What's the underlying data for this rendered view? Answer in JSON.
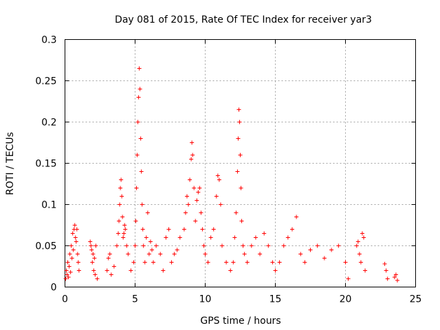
{
  "chart_data": {
    "type": "scatter",
    "title": "Day 081 of 2015, Rate Of TEC Index for receiver yar3",
    "xlabel": "GPS time / hours",
    "ylabel": "ROTI / TECUs",
    "xlim": [
      0,
      25
    ],
    "ylim": [
      0,
      0.3
    ],
    "xticks": [
      0,
      5,
      10,
      15,
      20,
      25
    ],
    "yticks": [
      0,
      0.05,
      0.1,
      0.15,
      0.2,
      0.25,
      0.3
    ],
    "xtick_labels": [
      "0",
      "5",
      "10",
      "15",
      "20",
      "25"
    ],
    "ytick_labels": [
      "0",
      "0.05",
      "0.1",
      "0.15",
      "0.2",
      "0.25",
      "0.3"
    ],
    "grid": true,
    "marker": "+",
    "color": "#ff0000",
    "series": [
      {
        "points": [
          [
            0.05,
            0.01
          ],
          [
            0.1,
            0.02
          ],
          [
            0.15,
            0.015
          ],
          [
            0.2,
            0.03
          ],
          [
            0.25,
            0.012
          ],
          [
            0.3,
            0.025
          ],
          [
            0.35,
            0.04
          ],
          [
            0.4,
            0.018
          ],
          [
            0.45,
            0.05
          ],
          [
            0.5,
            0.035
          ],
          [
            0.55,
            0.065
          ],
          [
            0.6,
            0.045
          ],
          [
            0.65,
            0.07
          ],
          [
            0.7,
            0.075
          ],
          [
            0.75,
            0.06
          ],
          [
            0.8,
            0.055
          ],
          [
            0.85,
            0.07
          ],
          [
            0.9,
            0.04
          ],
          [
            0.95,
            0.03
          ],
          [
            1.0,
            0.02
          ],
          [
            1.8,
            0.055
          ],
          [
            1.85,
            0.05
          ],
          [
            1.9,
            0.045
          ],
          [
            1.95,
            0.03
          ],
          [
            2.0,
            0.04
          ],
          [
            2.05,
            0.02
          ],
          [
            2.1,
            0.035
          ],
          [
            2.15,
            0.015
          ],
          [
            2.2,
            0.05
          ],
          [
            2.3,
            0.01
          ],
          [
            3.0,
            0.02
          ],
          [
            3.1,
            0.035
          ],
          [
            3.2,
            0.04
          ],
          [
            3.3,
            0.015
          ],
          [
            3.5,
            0.025
          ],
          [
            3.7,
            0.05
          ],
          [
            3.8,
            0.065
          ],
          [
            3.85,
            0.08
          ],
          [
            3.9,
            0.1
          ],
          [
            3.95,
            0.12
          ],
          [
            4.0,
            0.13
          ],
          [
            4.05,
            0.11
          ],
          [
            4.1,
            0.085
          ],
          [
            4.15,
            0.06
          ],
          [
            4.2,
            0.065
          ],
          [
            4.25,
            0.075
          ],
          [
            4.3,
            0.07
          ],
          [
            4.4,
            0.05
          ],
          [
            4.5,
            0.04
          ],
          [
            4.7,
            0.02
          ],
          [
            4.9,
            0.03
          ],
          [
            5.0,
            0.05
          ],
          [
            5.05,
            0.08
          ],
          [
            5.1,
            0.12
          ],
          [
            5.15,
            0.16
          ],
          [
            5.2,
            0.2
          ],
          [
            5.25,
            0.23
          ],
          [
            5.3,
            0.265
          ],
          [
            5.35,
            0.24
          ],
          [
            5.4,
            0.18
          ],
          [
            5.45,
            0.14
          ],
          [
            5.5,
            0.1
          ],
          [
            5.55,
            0.07
          ],
          [
            5.6,
            0.05
          ],
          [
            5.7,
            0.03
          ],
          [
            5.8,
            0.06
          ],
          [
            5.9,
            0.09
          ],
          [
            6.0,
            0.04
          ],
          [
            6.1,
            0.055
          ],
          [
            6.2,
            0.045
          ],
          [
            6.3,
            0.03
          ],
          [
            6.5,
            0.05
          ],
          [
            6.8,
            0.04
          ],
          [
            7.0,
            0.02
          ],
          [
            7.2,
            0.06
          ],
          [
            7.4,
            0.07
          ],
          [
            7.6,
            0.03
          ],
          [
            7.8,
            0.04
          ],
          [
            8.0,
            0.045
          ],
          [
            8.2,
            0.06
          ],
          [
            8.5,
            0.07
          ],
          [
            8.6,
            0.09
          ],
          [
            8.7,
            0.11
          ],
          [
            8.8,
            0.1
          ],
          [
            8.9,
            0.13
          ],
          [
            9.0,
            0.155
          ],
          [
            9.05,
            0.175
          ],
          [
            9.1,
            0.16
          ],
          [
            9.2,
            0.12
          ],
          [
            9.3,
            0.08
          ],
          [
            9.4,
            0.105
          ],
          [
            9.5,
            0.115
          ],
          [
            9.6,
            0.12
          ],
          [
            9.7,
            0.09
          ],
          [
            9.8,
            0.07
          ],
          [
            9.9,
            0.05
          ],
          [
            10.0,
            0.04
          ],
          [
            10.2,
            0.03
          ],
          [
            10.4,
            0.06
          ],
          [
            10.6,
            0.07
          ],
          [
            10.8,
            0.11
          ],
          [
            10.9,
            0.135
          ],
          [
            11.0,
            0.13
          ],
          [
            11.1,
            0.1
          ],
          [
            11.2,
            0.05
          ],
          [
            11.5,
            0.03
          ],
          [
            11.8,
            0.02
          ],
          [
            12.0,
            0.03
          ],
          [
            12.1,
            0.06
          ],
          [
            12.2,
            0.09
          ],
          [
            12.3,
            0.14
          ],
          [
            12.35,
            0.18
          ],
          [
            12.4,
            0.215
          ],
          [
            12.45,
            0.2
          ],
          [
            12.5,
            0.16
          ],
          [
            12.55,
            0.12
          ],
          [
            12.6,
            0.08
          ],
          [
            12.7,
            0.05
          ],
          [
            12.8,
            0.04
          ],
          [
            13.0,
            0.03
          ],
          [
            13.3,
            0.05
          ],
          [
            13.6,
            0.06
          ],
          [
            13.9,
            0.04
          ],
          [
            14.2,
            0.065
          ],
          [
            14.5,
            0.05
          ],
          [
            14.8,
            0.03
          ],
          [
            15.0,
            0.02
          ],
          [
            15.3,
            0.03
          ],
          [
            15.6,
            0.05
          ],
          [
            15.9,
            0.06
          ],
          [
            16.2,
            0.07
          ],
          [
            16.5,
            0.085
          ],
          [
            16.8,
            0.04
          ],
          [
            17.1,
            0.03
          ],
          [
            17.5,
            0.045
          ],
          [
            18.0,
            0.05
          ],
          [
            18.5,
            0.035
          ],
          [
            19.0,
            0.045
          ],
          [
            19.5,
            0.05
          ],
          [
            20.0,
            0.03
          ],
          [
            20.2,
            0.01
          ],
          [
            20.8,
            0.05
          ],
          [
            20.9,
            0.055
          ],
          [
            21.0,
            0.04
          ],
          [
            21.1,
            0.03
          ],
          [
            21.2,
            0.065
          ],
          [
            21.3,
            0.06
          ],
          [
            21.4,
            0.02
          ],
          [
            22.8,
            0.028
          ],
          [
            22.9,
            0.02
          ],
          [
            23.0,
            0.01
          ],
          [
            23.5,
            0.012
          ],
          [
            23.6,
            0.015
          ],
          [
            23.7,
            0.008
          ]
        ]
      }
    ]
  }
}
